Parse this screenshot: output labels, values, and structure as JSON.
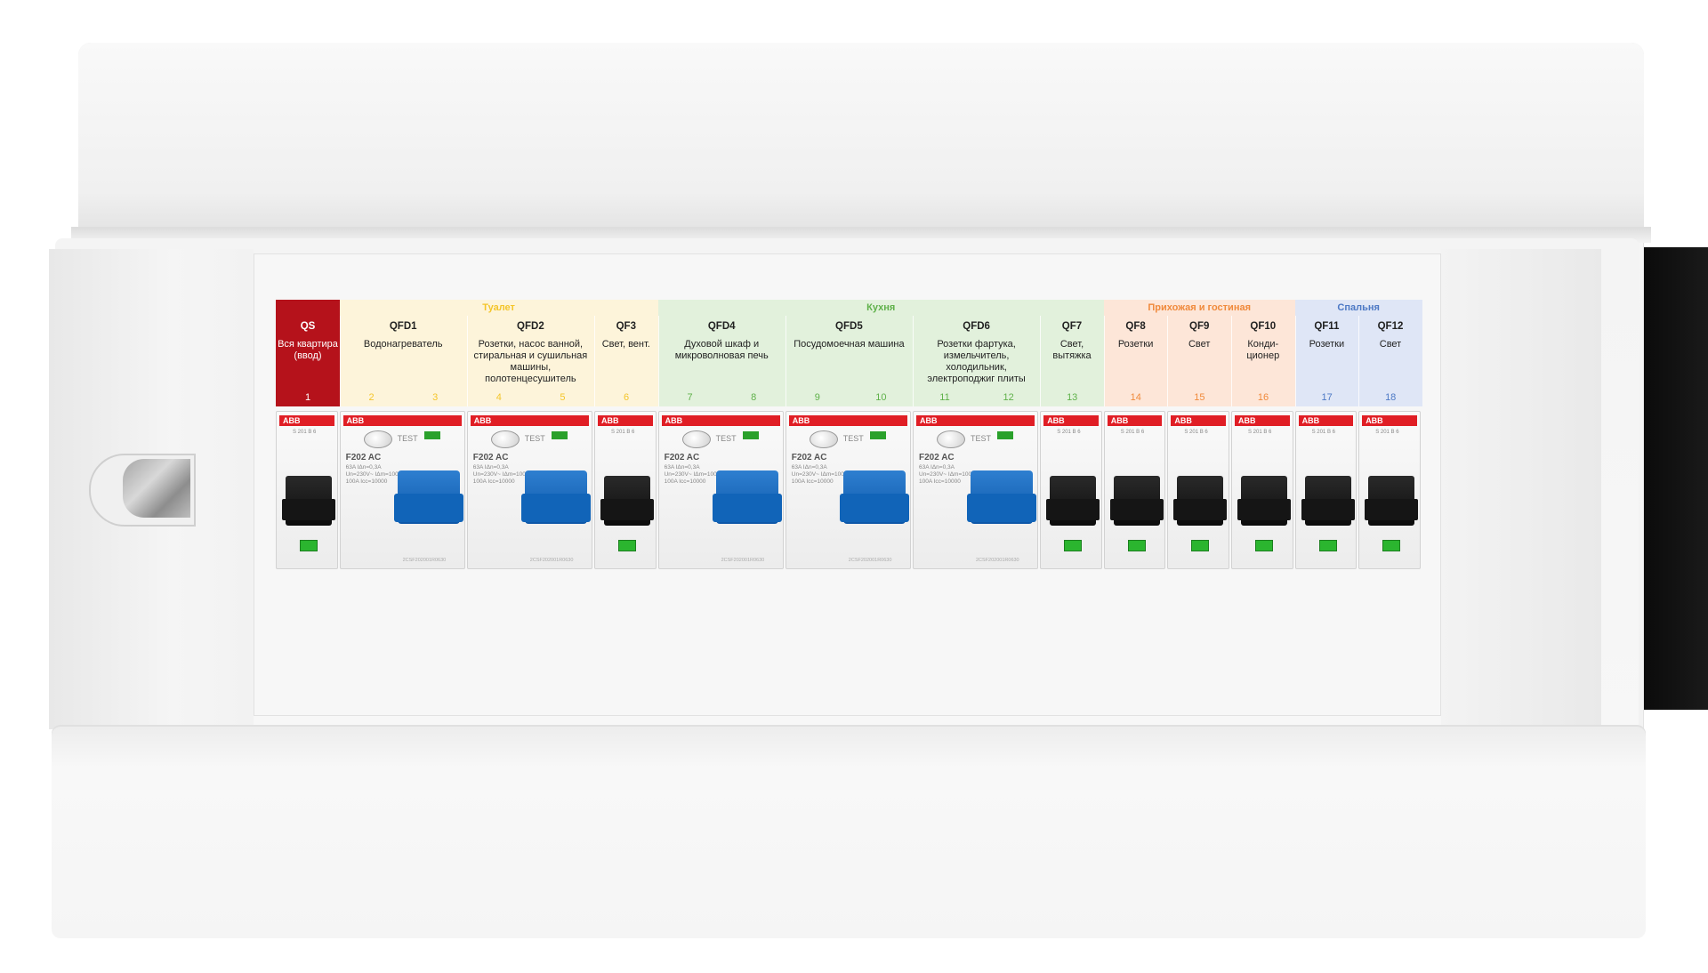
{
  "zones": [
    {
      "id": "toilet",
      "title": "Туалет",
      "color": "#f4c52a",
      "bg": "#fdf4da"
    },
    {
      "id": "kitchen",
      "title": "Кухня",
      "color": "#5fb14a",
      "bg": "#e2f1dc"
    },
    {
      "id": "hall",
      "title": "Прихожая и гостиная",
      "color": "#f08a3c",
      "bg": "#fde6d8"
    },
    {
      "id": "bedroom",
      "title": "Спальня",
      "color": "#4d79c5",
      "bg": "#dfe6f6"
    }
  ],
  "qs": {
    "code": "QS",
    "desc": "Вся квартира (ввод)",
    "num": "1"
  },
  "cells": [
    {
      "code": "QFD1",
      "desc": "Водонагреватель",
      "nums": [
        "2",
        "3"
      ],
      "zone": "toilet"
    },
    {
      "code": "QFD2",
      "desc": "Розетки, насос ванной, стиральная и сушильная машины, полотенцесушитель",
      "nums": [
        "4",
        "5"
      ],
      "zone": "toilet"
    },
    {
      "code": "QF3",
      "desc": "Свет, вент.",
      "nums": [
        "6"
      ],
      "zone": "toilet"
    },
    {
      "code": "QFD4",
      "desc": "Духовой шкаф и микроволновая печь",
      "nums": [
        "7",
        "8"
      ],
      "zone": "kitchen"
    },
    {
      "code": "QFD5",
      "desc": "Посудомоечная машина",
      "nums": [
        "9",
        "10"
      ],
      "zone": "kitchen"
    },
    {
      "code": "QFD6",
      "desc": "Розетки фартука, измельчитель, холодильник, электроподжиг плиты",
      "nums": [
        "11",
        "12"
      ],
      "zone": "kitchen"
    },
    {
      "code": "QF7",
      "desc": "Свет, вытяжка",
      "nums": [
        "13"
      ],
      "zone": "kitchen"
    },
    {
      "code": "QF8",
      "desc": "Розетки",
      "nums": [
        "14"
      ],
      "zone": "hall"
    },
    {
      "code": "QF9",
      "desc": "Свет",
      "nums": [
        "15"
      ],
      "zone": "hall"
    },
    {
      "code": "QF10",
      "desc": "Конди- ционер",
      "nums": [
        "16"
      ],
      "zone": "hall"
    },
    {
      "code": "QF11",
      "desc": "Розетки",
      "nums": [
        "17"
      ],
      "zone": "bedroom"
    },
    {
      "code": "QF12",
      "desc": "Свет",
      "nums": [
        "18"
      ],
      "zone": "bedroom"
    }
  ],
  "breaker": {
    "brand": "ABB",
    "rcd_model": "F202 AC",
    "rcd_spec": "63A IΔn=0,3A Un=230V~ IΔm=1000A 100A Icc=10000",
    "rcd_test": "TEST",
    "rcd_foot": "2CSF202001R0630",
    "mcb_spec": "S 201 B 6"
  }
}
